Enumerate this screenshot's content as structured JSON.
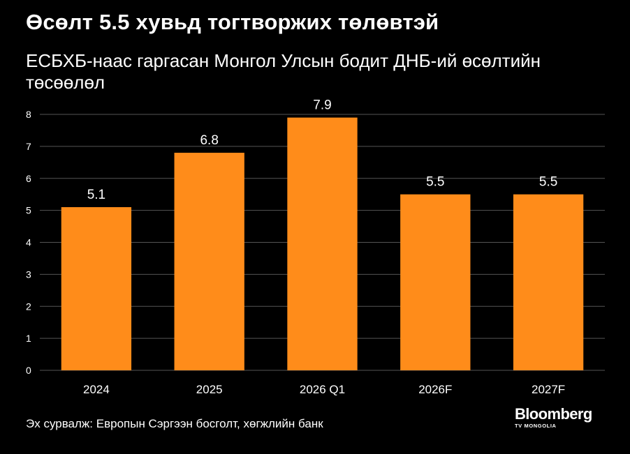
{
  "chart_data": {
    "type": "bar",
    "title": "Өсөлт 5.5 хувьд тогтворжих төлөвтэй",
    "subtitle": "ЕСБХБ-наас гаргасан Монгол Улсын бодит ДНБ-ий өсөлтийн төсөөлөл",
    "categories": [
      "2024",
      "2025",
      "2026 Q1",
      "2026F",
      "2027F"
    ],
    "values": [
      5.1,
      6.8,
      7.9,
      5.5,
      5.5
    ],
    "value_labels": [
      "5.1",
      "6.8",
      "7.9",
      "5.5",
      "5.5"
    ],
    "yticks": [
      "0",
      "1",
      "2",
      "3",
      "4",
      "5",
      "6",
      "7",
      "8"
    ],
    "ylim": [
      0,
      8
    ],
    "grid": true,
    "bar_color": "#FF8C1A",
    "grid_color": "#555555"
  },
  "footer": {
    "source": "Эх сурвалж: Европын Сэргээн босголт, хөгжлийн банк",
    "brand_name": "Bloomberg",
    "brand_sub": "TV MONGOLIA"
  }
}
